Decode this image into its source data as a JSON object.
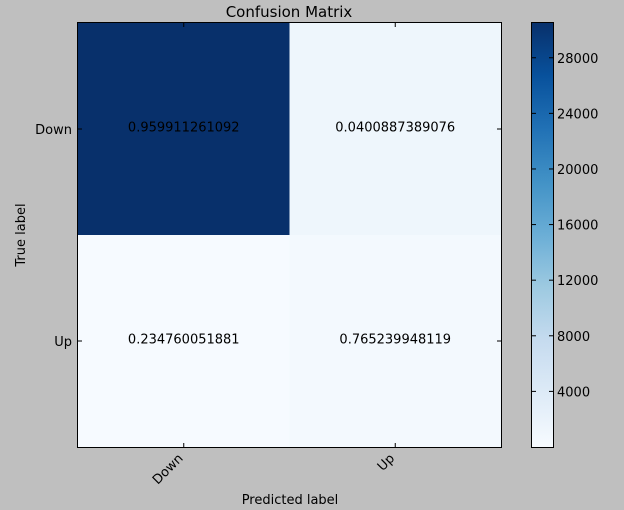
{
  "chart_data": {
    "type": "heatmap",
    "title": "Confusion Matrix",
    "xlabel": "Predicted label",
    "ylabel": "True label",
    "row_labels": [
      "Down",
      "Up"
    ],
    "col_labels": [
      "Down",
      "Up"
    ],
    "cell_text": [
      [
        "0.959911261092",
        "0.0400887389076"
      ],
      [
        "0.234760051881",
        "0.765239948119"
      ]
    ],
    "cell_counts": [
      [
        30500,
        1300
      ],
      [
        180,
        590
      ]
    ],
    "colorbar": {
      "min": 0,
      "max": 30500,
      "ticks": [
        4000,
        8000,
        12000,
        16000,
        20000,
        24000,
        28000
      ],
      "tick_labels": [
        "4000",
        "8000",
        "12000",
        "16000",
        "20000",
        "24000",
        "28000"
      ],
      "colormap": "Blues"
    },
    "colors": {
      "background": "#bfbfbf",
      "cmap_stops": [
        "#f7fbff",
        "#deebf7",
        "#c6dbef",
        "#9ecae1",
        "#6baed6",
        "#4292c6",
        "#2171b5",
        "#08519c",
        "#08306b"
      ]
    }
  }
}
